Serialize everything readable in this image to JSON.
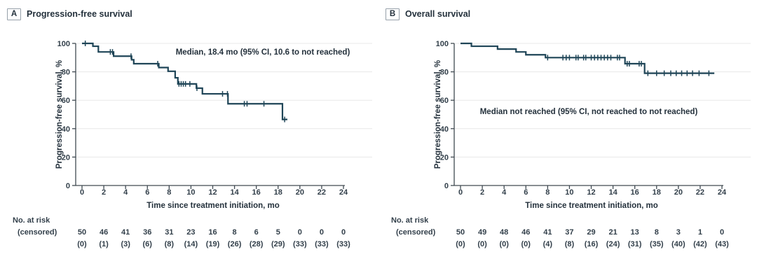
{
  "figure": {
    "background": "#ffffff"
  },
  "colors": {
    "curve": "#1f4557",
    "grid": "#e8e8e8",
    "axis": "#404a52",
    "text": "#323f4a",
    "title_text": "#24313c",
    "panel_tag_border": "#97a1aa"
  },
  "chart_data": [
    {
      "type": "line",
      "subtype": "kaplan-meier-step",
      "panel_label": "A",
      "title": "Progression-free survival",
      "annotation": "Median, 18.4 mo (95% CI, 10.6 to not reached)",
      "annotation_xy": [
        375,
        38
      ],
      "xlabel": "Time since treatment initiation, mo",
      "ylabel": "Progression-free survival, %",
      "xlim": [
        0,
        24
      ],
      "ylim": [
        0,
        100
      ],
      "grid": "horizontal",
      "legend": "none",
      "x_ticks": [
        0,
        2,
        4,
        6,
        8,
        10,
        12,
        14,
        16,
        18,
        20,
        22,
        24
      ],
      "y_ticks": [
        0,
        20,
        40,
        60,
        80,
        100
      ],
      "steps": [
        [
          0,
          100
        ],
        [
          1.0,
          98
        ],
        [
          1.5,
          94
        ],
        [
          2.9,
          91
        ],
        [
          4.55,
          88.5
        ],
        [
          4.75,
          85.7
        ],
        [
          7.05,
          83
        ],
        [
          7.9,
          80.4
        ],
        [
          8.55,
          75.8
        ],
        [
          8.8,
          71.5
        ],
        [
          10.5,
          68.5
        ],
        [
          11.05,
          64.5
        ],
        [
          13.4,
          57.5
        ],
        [
          18.4,
          46.5
        ]
      ],
      "end_t": 18.85,
      "censors": [
        [
          0.3,
          100
        ],
        [
          2.6,
          94
        ],
        [
          2.8,
          94
        ],
        [
          4.5,
          91
        ],
        [
          6.95,
          85.7
        ],
        [
          8.9,
          71.5
        ],
        [
          9.1,
          71.5
        ],
        [
          9.3,
          71.5
        ],
        [
          9.5,
          71.5
        ],
        [
          9.9,
          71.5
        ],
        [
          10.55,
          68.5
        ],
        [
          12.9,
          64.5
        ],
        [
          13.35,
          64.5
        ],
        [
          14.9,
          57.5
        ],
        [
          15.15,
          57.5
        ],
        [
          16.7,
          57.5
        ],
        [
          18.6,
          46.5
        ]
      ],
      "risk_header": "No. at risk",
      "risk_subheader": "(censored)",
      "at_risk": [
        50,
        46,
        41,
        36,
        31,
        23,
        16,
        8,
        6,
        5,
        0,
        0,
        0
      ],
      "censored_counts": [
        "(0)",
        "(1)",
        "(3)",
        "(6)",
        "(8)",
        "(14)",
        "(19)",
        "(26)",
        "(28)",
        "(29)",
        "(33)",
        "(33)",
        "(33)"
      ]
    },
    {
      "type": "line",
      "subtype": "kaplan-meier-step",
      "panel_label": "B",
      "title": "Overall survival",
      "annotation": "Median not reached (95% CI, not reached to not reached)",
      "annotation_xy": [
        300,
        123
      ],
      "xlabel": "Time since treatment initiation, mo",
      "ylabel": "Progression-free survival, %",
      "xlim": [
        0,
        24
      ],
      "ylim": [
        0,
        100
      ],
      "grid": "horizontal",
      "legend": "none",
      "x_ticks": [
        0,
        2,
        4,
        6,
        8,
        10,
        12,
        14,
        16,
        18,
        20,
        22,
        24
      ],
      "y_ticks": [
        0,
        20,
        40,
        60,
        80,
        100
      ],
      "steps": [
        [
          0,
          100
        ],
        [
          1.0,
          98
        ],
        [
          3.4,
          96
        ],
        [
          5.1,
          94
        ],
        [
          6.0,
          92
        ],
        [
          7.8,
          90
        ],
        [
          15.1,
          85.7
        ],
        [
          16.9,
          79
        ]
      ],
      "end_t": 23.3,
      "censors": [
        [
          8.0,
          90
        ],
        [
          9.4,
          90
        ],
        [
          9.7,
          90
        ],
        [
          10.0,
          90
        ],
        [
          10.6,
          90
        ],
        [
          10.8,
          90
        ],
        [
          11.3,
          90
        ],
        [
          11.5,
          90
        ],
        [
          12.0,
          90
        ],
        [
          12.3,
          90
        ],
        [
          12.6,
          90
        ],
        [
          12.9,
          90
        ],
        [
          13.2,
          90
        ],
        [
          13.5,
          90
        ],
        [
          13.8,
          90
        ],
        [
          14.4,
          90
        ],
        [
          14.6,
          90
        ],
        [
          15.3,
          85.7
        ],
        [
          15.5,
          85.7
        ],
        [
          16.4,
          85.7
        ],
        [
          16.6,
          85.7
        ],
        [
          17.2,
          79
        ],
        [
          18.0,
          79
        ],
        [
          18.7,
          79
        ],
        [
          19.3,
          79
        ],
        [
          19.8,
          79
        ],
        [
          20.3,
          79
        ],
        [
          20.8,
          79
        ],
        [
          21.3,
          79
        ],
        [
          21.9,
          79
        ],
        [
          22.8,
          79
        ]
      ],
      "risk_header": "No. at risk",
      "risk_subheader": "(censored)",
      "at_risk": [
        50,
        49,
        48,
        46,
        41,
        37,
        29,
        21,
        13,
        8,
        3,
        1,
        0
      ],
      "censored_counts": [
        "(0)",
        "(0)",
        "(0)",
        "(0)",
        "(4)",
        "(8)",
        "(16)",
        "(24)",
        "(31)",
        "(35)",
        "(40)",
        "(42)",
        "(43)"
      ]
    }
  ]
}
